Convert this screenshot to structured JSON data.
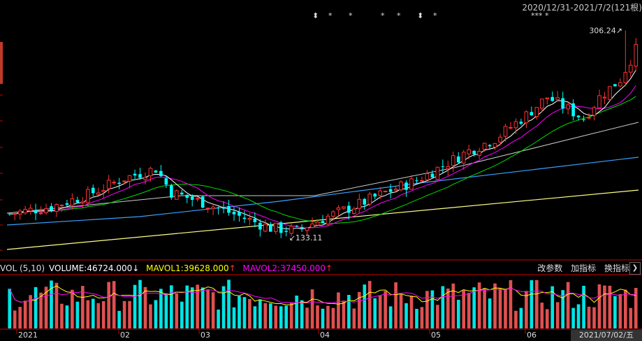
{
  "header": {
    "range_label": "2020/12/31-2021/7/2(121根)",
    "markers": [
      "⬍",
      "*",
      "*",
      "*",
      "*",
      "⬍",
      "*"
    ],
    "marker_right": "***  *"
  },
  "price_panel": {
    "high_label": "306.24",
    "low_label": "133.11",
    "up_color": "#ff3232",
    "down_color": "#00ffff"
  },
  "volume_panel": {
    "indicator": "VOL (5,10)",
    "volume": "VOLUME:46724.000",
    "volume_arrow": "↓",
    "mavol1": "MAVOL1:39628.000",
    "mavol1_arrow": "↑",
    "mavol2": "MAVOL2:37450.000",
    "mavol2_arrow": "↑",
    "buttons": [
      "改参数",
      "加指标",
      "换指标"
    ],
    "nav_arrow": "❯"
  },
  "x_axis": {
    "labels": [
      "2021",
      "02",
      "03",
      "04",
      "05",
      "06"
    ],
    "current_date": "2021/07/02/五"
  },
  "chart_data": {
    "type": "candlestick",
    "n": 121,
    "price_range": [
      125,
      320
    ],
    "candles": [],
    "volume": []
  }
}
